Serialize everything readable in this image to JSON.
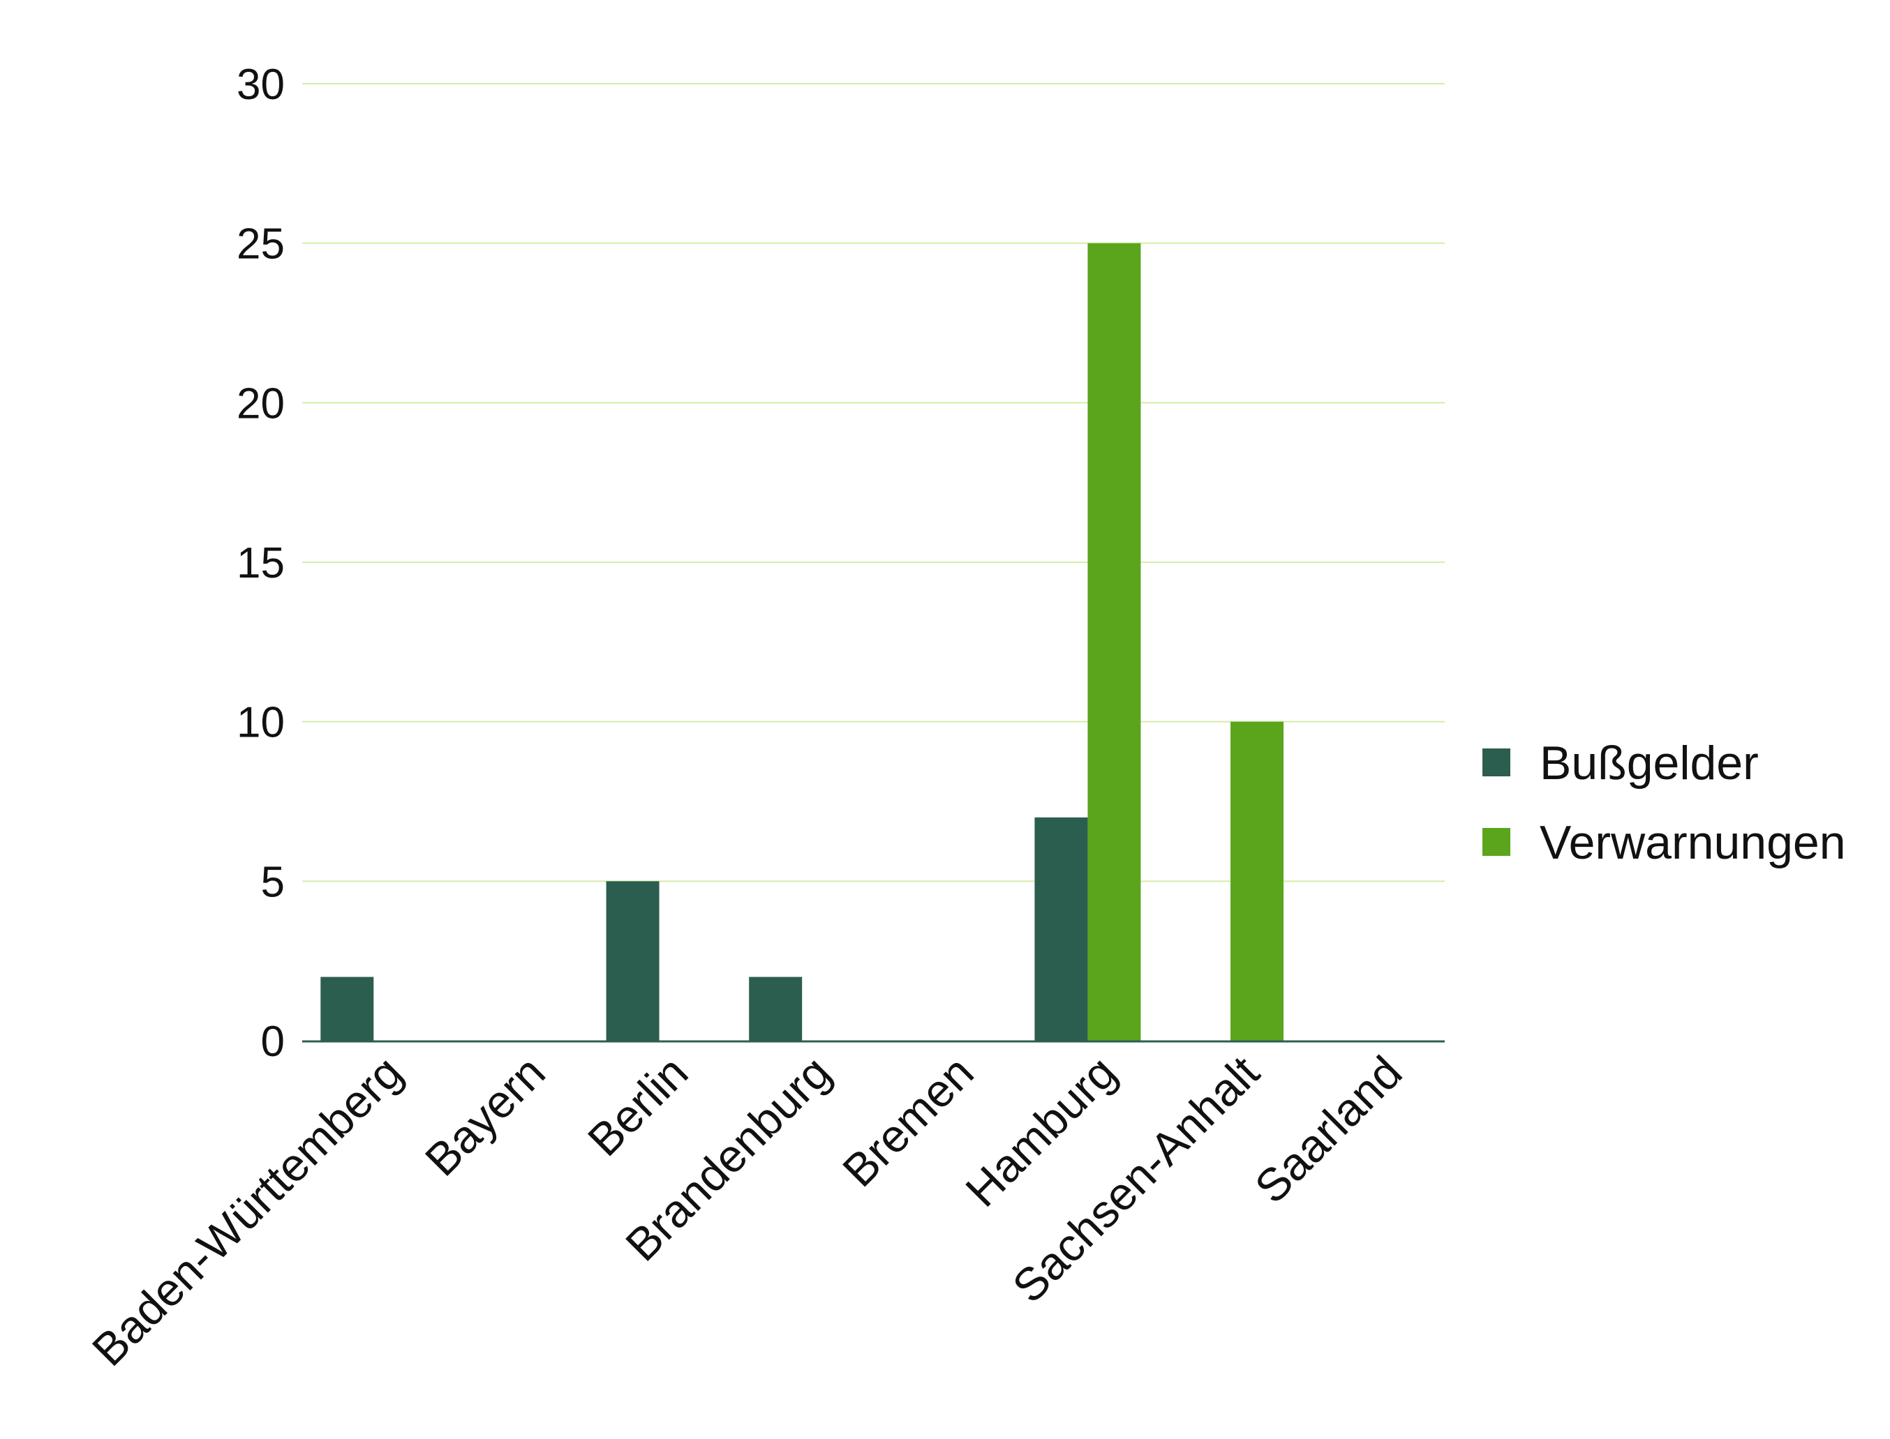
{
  "chart_data": {
    "type": "bar",
    "categories": [
      "Baden-Württemberg",
      "Bayern",
      "Berlin",
      "Brandenburg",
      "Bremen",
      "Hamburg",
      "Sachsen-Anhalt",
      "Saarland"
    ],
    "series": [
      {
        "name": "Bußgelder",
        "color": "#2c5e50",
        "values": [
          2,
          0,
          5,
          2,
          0,
          7,
          0,
          0
        ]
      },
      {
        "name": "Verwarnungen",
        "color": "#5aa51c",
        "values": [
          0,
          0,
          0,
          0,
          0,
          25,
          10,
          0
        ]
      }
    ],
    "yticks": [
      "0",
      "5",
      "10",
      "15",
      "20",
      "25",
      "30"
    ],
    "ylim": [
      0,
      30
    ],
    "grid": true,
    "grid_color": "#d5eda8",
    "axis_color": "#2c5e50",
    "legend_position": "right"
  }
}
